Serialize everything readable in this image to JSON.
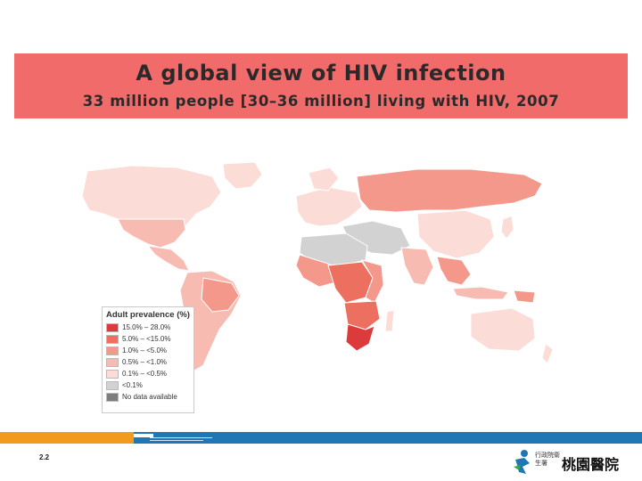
{
  "title": {
    "main": "A global view of HIV infection",
    "subtitle": "33 million people [30–36 million] living with HIV, 2007"
  },
  "legend": {
    "title": "Adult prevalence (%)",
    "items": [
      {
        "label": "15.0% – 28.0%",
        "color": "#dd3b3b"
      },
      {
        "label": "5.0% – <15.0%",
        "color": "#ec6f60"
      },
      {
        "label": "1.0% – <5.0%",
        "color": "#f3988a"
      },
      {
        "label": "0.5% – <1.0%",
        "color": "#f7bbb2"
      },
      {
        "label": "0.1% – <0.5%",
        "color": "#fbdcd6"
      },
      {
        "label": "<0.1%",
        "color": "#d2d2d2"
      },
      {
        "label": "No data available",
        "color": "#7d7d7d"
      }
    ]
  },
  "footer": {
    "slide_number": "2.2",
    "dept_label": "行政院衛生署",
    "hospital_name": "桃園醫院"
  },
  "colors": {
    "title_bg": "#f26b6b",
    "footer_blue": "#1f77b4",
    "footer_orange": "#f29a1e"
  }
}
